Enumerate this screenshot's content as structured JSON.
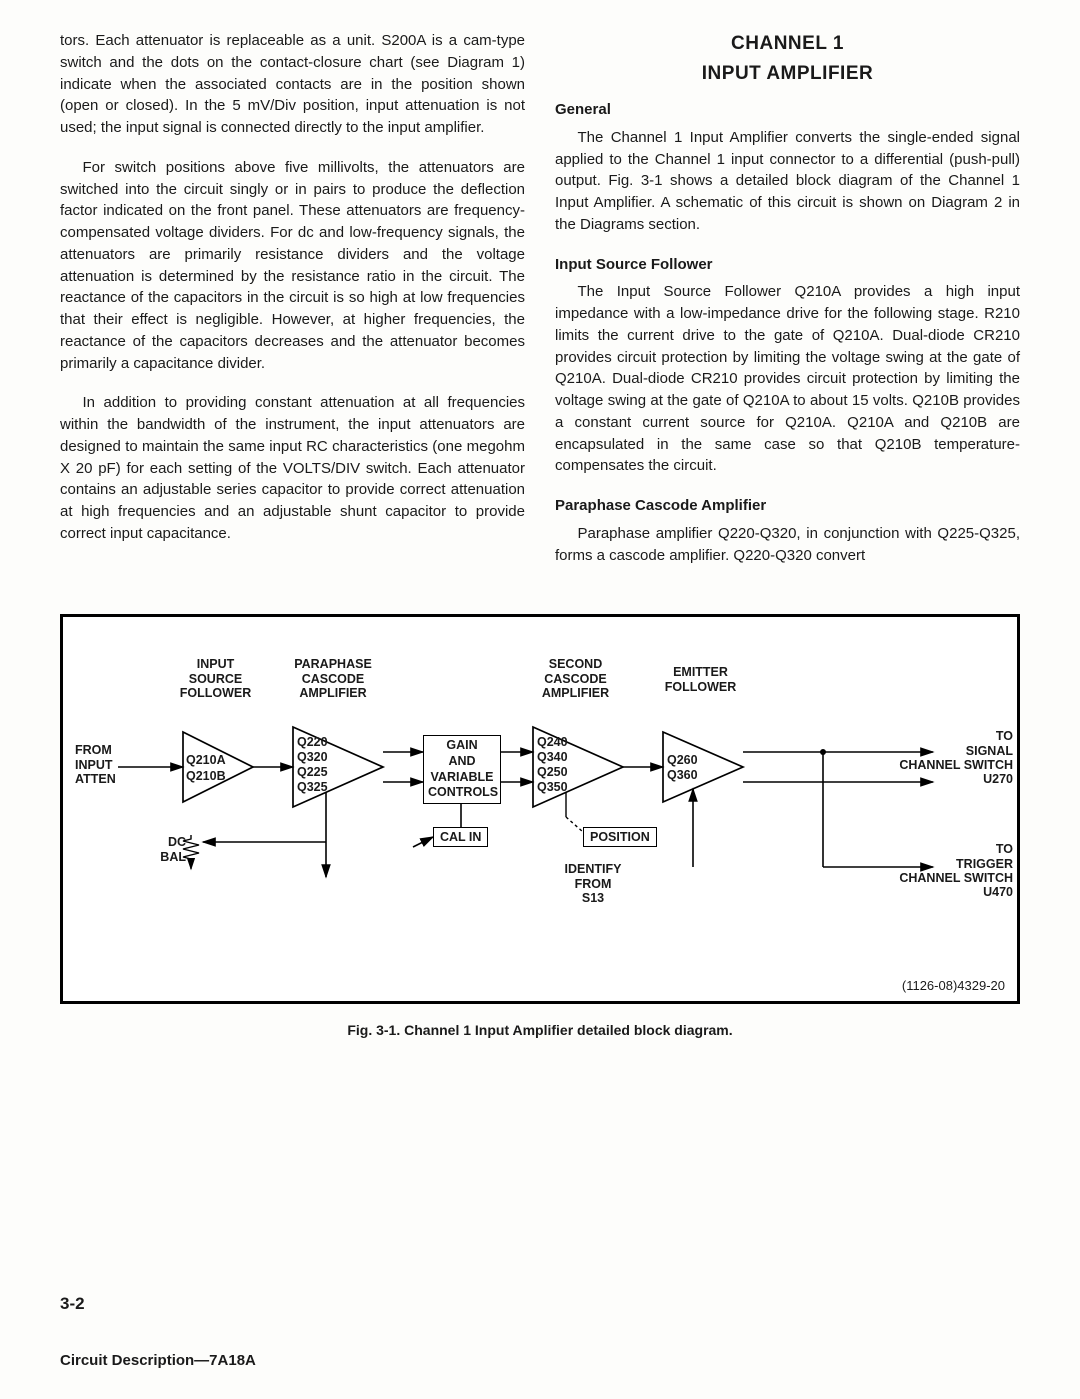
{
  "left_column": {
    "p1": "tors. Each attenuator is replaceable as a unit. S200A is a cam-type switch and the dots on the contact-closure chart (see Diagram 1) indicate when the associated contacts are in the position shown (open or closed). In the 5 mV/Div position, input attenuation is not used; the input signal is connected directly to the input amplifier.",
    "p2": "For switch positions above five millivolts, the attenuators are switched into the circuit singly or in pairs to produce the deflection factor indicated on the front panel. These attenuators are frequency-compensated voltage dividers. For dc and low-frequency signals, the attenuators are primarily resistance dividers and the voltage attenuation is determined by the resistance ratio in the circuit. The reactance of the capacitors in the circuit is so high at low frequencies that their effect is negligible. However, at higher frequencies, the reactance of the capacitors decreases and the attenuator becomes primarily a capacitance divider.",
    "p3": "In addition to providing constant attenuation at all frequencies within the bandwidth of the instrument, the input attenuators are designed to maintain the same input RC characteristics (one megohm X 20 pF) for each setting of the VOLTS/DIV switch. Each attenuator contains an adjustable series capacitor to provide correct attenuation at high frequencies and an adjustable shunt capacitor to provide correct input capacitance."
  },
  "right_column": {
    "title1": "CHANNEL 1",
    "title2": "INPUT AMPLIFIER",
    "h_general": "General",
    "p_general": "The Channel 1 Input Amplifier converts the single-ended signal applied to the Channel 1 input connector to a differential (push-pull) output. Fig. 3-1 shows a detailed block diagram of the Channel 1 Input Amplifier. A schematic of this circuit is shown on Diagram 2 in the Diagrams section.",
    "h_isf": "Input Source Follower",
    "p_isf": "The Input Source Follower Q210A provides a high input impedance with a low-impedance drive for the following stage. R210 limits the current drive to the gate of Q210A. Dual-diode CR210 provides circuit protection by limiting the voltage swing at the gate of Q210A. Dual-diode CR210 provides circuit protection by limiting the voltage swing at the gate of Q210A to about 15 volts. Q210B provides a constant current source for Q210A. Q210A and Q210B are encapsulated in the same case so that Q210B temperature-compensates the circuit.",
    "h_pca": "Paraphase Cascode Amplifier",
    "p_pca": "Paraphase amplifier Q220-Q320, in conjunction with Q225-Q325, forms a cascode amplifier. Q220-Q320 convert"
  },
  "diagram": {
    "labels": {
      "isf": "INPUT\nSOURCE\nFOLLOWER",
      "pca": "PARAPHASE\nCASCODE\nAMPLIFIER",
      "sca": "SECOND\nCASCODE\nAMPLIFIER",
      "ef": "EMITTER\nFOLLOWER",
      "from_input": "FROM\nINPUT\nATTEN",
      "gain": "GAIN\nAND\nVARIABLE\nCONTROLS",
      "to_signal": "TO\nSIGNAL\nCHANNEL SWITCH\nU270",
      "to_trigger": "TO\nTRIGGER\nCHANNEL SWITCH\nU470",
      "dc_bal": "DC\nBAL",
      "cal_in": "CAL IN",
      "position": "POSITION",
      "identify": "IDENTIFY\nFROM\nS13",
      "q210a": "Q210A",
      "q210b": "Q210B",
      "q220": "Q220\nQ320\nQ225\nQ325",
      "q240": "Q240\nQ340\nQ250\nQ350",
      "q260": "Q260\nQ360"
    },
    "id": "(1126-08)4329-20"
  },
  "caption": "Fig. 3-1. Channel 1 Input Amplifier detailed block diagram.",
  "pagenum": "3-2",
  "footer": "Circuit Description—7A18A"
}
